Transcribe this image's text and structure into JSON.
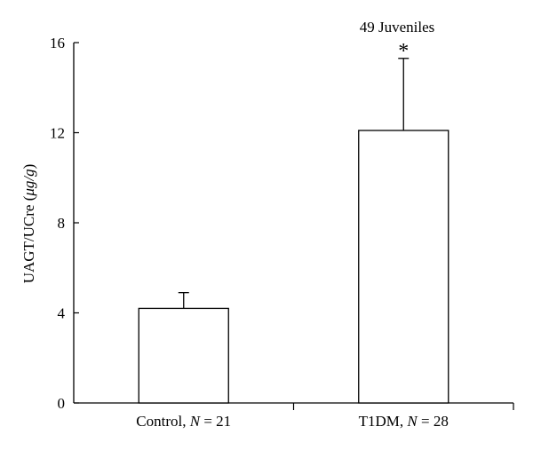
{
  "chart_data": {
    "type": "bar",
    "title": "49 Juveniles",
    "ylabel_main": "UAGT/UCre (",
    "ylabel_unit": "μg/g",
    "ylabel_close": ")",
    "ylim": [
      0,
      16
    ],
    "yticks": [
      0,
      4,
      8,
      12,
      16
    ],
    "grid": false,
    "categories": [
      {
        "name": "Control, ",
        "italic": "N",
        "rest": " = 21"
      },
      {
        "name": "T1DM, ",
        "italic": "N",
        "rest": " = 28"
      }
    ],
    "values": [
      4.2,
      12.1
    ],
    "error_upper": [
      4.9,
      15.3
    ],
    "annotations": [
      "",
      "*"
    ]
  }
}
